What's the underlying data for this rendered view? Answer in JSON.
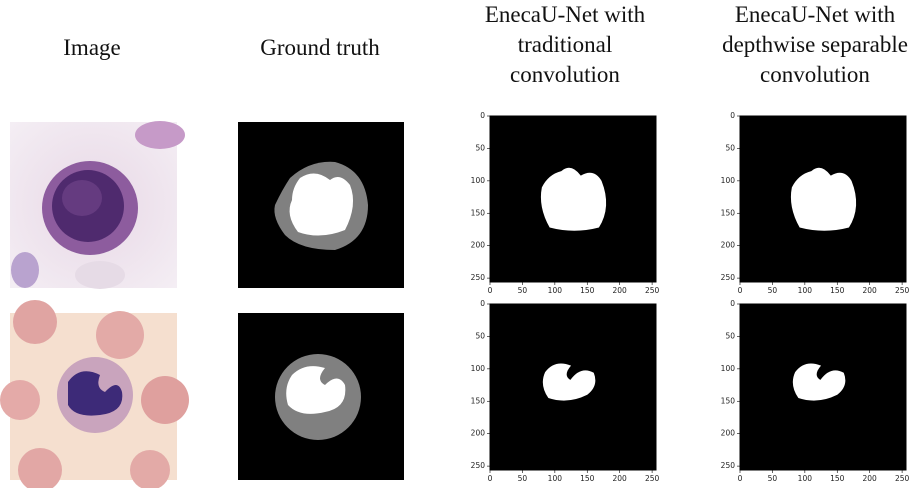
{
  "columns": [
    {
      "title_lines": [
        "Image"
      ]
    },
    {
      "title_lines": [
        "Ground truth"
      ]
    },
    {
      "title_lines": [
        "EnecaU-Net with",
        "traditional",
        "convolution"
      ]
    },
    {
      "title_lines": [
        "EnecaU-Net with",
        "depthwise separable",
        "convolution"
      ]
    }
  ],
  "plot_axes": {
    "range": [
      0,
      256
    ],
    "ticks": [
      0,
      50,
      100,
      150,
      200,
      250
    ]
  }
}
